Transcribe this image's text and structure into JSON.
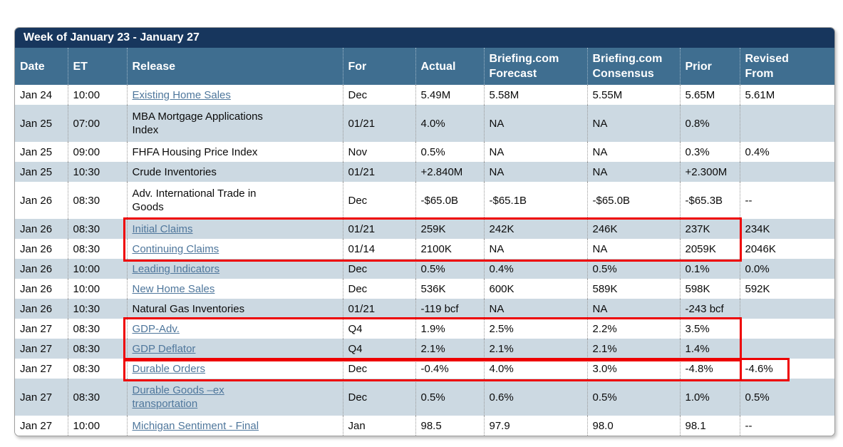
{
  "title": "Week of January 23 - January 27",
  "colors": {
    "title_bar": "#17365d",
    "header_bg": "#3f6e90",
    "row_alt": "#ccd9e2",
    "row_white": "#ffffff",
    "link": "#4f779c",
    "highlight_border": "#ee0000"
  },
  "table": {
    "columns": [
      {
        "key": "date",
        "label": "Date"
      },
      {
        "key": "et",
        "label": "ET"
      },
      {
        "key": "release",
        "label": "Release"
      },
      {
        "key": "for",
        "label": "For"
      },
      {
        "key": "actual",
        "label": "Actual"
      },
      {
        "key": "forecast",
        "label": "Briefing.com\nForecast"
      },
      {
        "key": "consensus",
        "label": "Briefing.com\nConsensus"
      },
      {
        "key": "prior",
        "label": "Prior"
      },
      {
        "key": "revised",
        "label": "Revised\nFrom"
      }
    ],
    "rows": [
      {
        "date": "Jan 24",
        "et": "10:00",
        "release": "Existing Home Sales",
        "link": true,
        "for": "Dec",
        "actual": "5.49M",
        "forecast": "5.58M",
        "consensus": "5.55M",
        "prior": "5.65M",
        "revised": "5.61M"
      },
      {
        "date": "Jan 25",
        "et": "07:00",
        "release": "MBA Mortgage Applications Index",
        "link": false,
        "for": "01/21",
        "actual": "4.0%",
        "forecast": "NA",
        "consensus": "NA",
        "prior": "0.8%",
        "revised": ""
      },
      {
        "date": "Jan 25",
        "et": "09:00",
        "release": "FHFA Housing Price Index",
        "link": false,
        "for": "Nov",
        "actual": "0.5%",
        "forecast": "NA",
        "consensus": "NA",
        "prior": "0.3%",
        "revised": "0.4%"
      },
      {
        "date": "Jan 25",
        "et": "10:30",
        "release": "Crude Inventories",
        "link": false,
        "for": "01/21",
        "actual": "+2.840M",
        "forecast": "NA",
        "consensus": "NA",
        "prior": "+2.300M",
        "revised": ""
      },
      {
        "date": "Jan 26",
        "et": "08:30",
        "release": "Adv. International Trade in Goods",
        "link": false,
        "for": "Dec",
        "actual": "-$65.0B",
        "forecast": "-$65.1B",
        "consensus": "-$65.0B",
        "prior": "-$65.3B",
        "revised": "--"
      },
      {
        "date": "Jan 26",
        "et": "08:30",
        "release": "Initial Claims",
        "link": true,
        "for": "01/21",
        "actual": "259K",
        "forecast": "242K",
        "consensus": "246K",
        "prior": "237K",
        "revised": "234K"
      },
      {
        "date": "Jan 26",
        "et": "08:30",
        "release": "Continuing Claims",
        "link": true,
        "for": "01/14",
        "actual": "2100K",
        "forecast": "NA",
        "consensus": "NA",
        "prior": "2059K",
        "revised": "2046K"
      },
      {
        "date": "Jan 26",
        "et": "10:00",
        "release": "Leading Indicators",
        "link": true,
        "for": "Dec",
        "actual": "0.5%",
        "forecast": "0.4%",
        "consensus": "0.5%",
        "prior": "0.1%",
        "revised": "0.0%"
      },
      {
        "date": "Jan 26",
        "et": "10:00",
        "release": "New Home Sales",
        "link": true,
        "for": "Dec",
        "actual": "536K",
        "forecast": "600K",
        "consensus": "589K",
        "prior": "598K",
        "revised": "592K"
      },
      {
        "date": "Jan 26",
        "et": "10:30",
        "release": "Natural Gas Inventories",
        "link": false,
        "for": "01/21",
        "actual": "-119 bcf",
        "forecast": "NA",
        "consensus": "NA",
        "prior": "-243 bcf",
        "revised": ""
      },
      {
        "date": "Jan 27",
        "et": "08:30",
        "release": "GDP-Adv.",
        "link": true,
        "for": "Q4",
        "actual": "1.9%",
        "forecast": "2.5%",
        "consensus": "2.2%",
        "prior": "3.5%",
        "revised": ""
      },
      {
        "date": "Jan 27",
        "et": "08:30",
        "release": "GDP Deflator",
        "link": true,
        "for": "Q4",
        "actual": "2.1%",
        "forecast": "2.1%",
        "consensus": "2.1%",
        "prior": "1.4%",
        "revised": ""
      },
      {
        "date": "Jan 27",
        "et": "08:30",
        "release": "Durable Orders",
        "link": true,
        "for": "Dec",
        "actual": "-0.4%",
        "forecast": "4.0%",
        "consensus": "3.0%",
        "prior": "-4.8%",
        "revised": "-4.6%"
      },
      {
        "date": "Jan 27",
        "et": "08:30",
        "release": "Durable Goods –ex transportation",
        "link": true,
        "for": "Dec",
        "actual": "0.5%",
        "forecast": "0.6%",
        "consensus": "0.5%",
        "prior": "1.0%",
        "revised": "0.5%"
      },
      {
        "date": "Jan 27",
        "et": "10:00",
        "release": "Michigan Sentiment - Final",
        "link": true,
        "for": "Jan",
        "actual": "98.5",
        "forecast": "97.9",
        "consensus": "98.0",
        "prior": "98.1",
        "revised": "--"
      }
    ]
  },
  "highlights": [
    {
      "name": "claims-highlight",
      "rows": [
        "Initial Claims",
        "Continuing Claims"
      ],
      "includes_revised_from": false
    },
    {
      "name": "gdp-highlight",
      "rows": [
        "GDP-Adv.",
        "GDP Deflator"
      ],
      "includes_revised_from": false
    },
    {
      "name": "durable-orders-highlight",
      "rows": [
        "Durable Orders"
      ],
      "includes_revised_from": true
    }
  ]
}
